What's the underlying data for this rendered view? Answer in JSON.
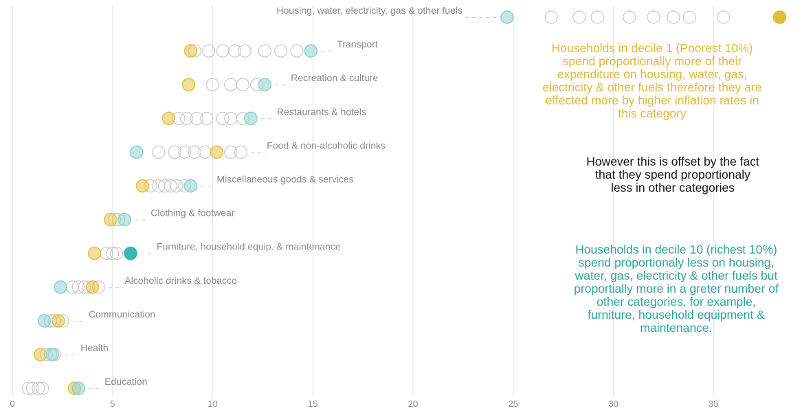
{
  "colors": {
    "decile1": "#e6c24a",
    "decile10": "#8fd3cf",
    "highlight1": "#e0b830",
    "highlight10": "#2fb4ab",
    "other": "#c8c8c8",
    "grid": "#e3e3e3",
    "connector": "#cccccc",
    "label": "#888888",
    "annot_decile1": "#e0b93a",
    "annot_body": "#111111",
    "annot_decile10": "#2aa39b"
  },
  "annotations": [
    {
      "text": "Households in decile 1 (Poorest 10%) spend proportionally more of their expenditure on housing, water, gas, electricity & other fuels therefore they are effected more by higher inflation rates in this category",
      "color_key": "annot_decile1"
    },
    {
      "text": "However this is offset by the fact that they spend proportionaly less in other categories",
      "color_key": "annot_body"
    },
    {
      "text": "Households in decile 10 (richest 10%) spend proportionaly less on housing, water, gas, electricity & other fuels but proportially more in a greter number of other categories, for example, furniture, household equipment & maintenance.",
      "color_key": "annot_decile10"
    }
  ],
  "chart_data": {
    "type": "scatter",
    "title": "",
    "xlabel": "",
    "ylabel": "",
    "xlim": [
      0,
      39
    ],
    "xticks": [
      0,
      5,
      10,
      15,
      20,
      25,
      30,
      35
    ],
    "grid": "vertical",
    "categories": [
      {
        "name": "Housing, water, electricity, gas & other fuels",
        "decile1": 38.3,
        "decile10": 24.7,
        "others": [
          26.9,
          28.3,
          29.2,
          30.8,
          32.0,
          33.0,
          33.8,
          35.5
        ],
        "highlight": "decile1"
      },
      {
        "name": "Transport",
        "decile1": 8.9,
        "decile10": 14.9,
        "others": [
          9.1,
          9.8,
          10.5,
          11.1,
          11.6,
          12.6,
          13.4,
          14.2
        ],
        "highlight": null
      },
      {
        "name": "Recreation & culture",
        "decile1": 8.8,
        "decile10": 12.6,
        "others": [
          10.0,
          10.9,
          11.5,
          12.2
        ],
        "highlight": null
      },
      {
        "name": "Restaurants & hotels",
        "decile1": 7.8,
        "decile10": 11.9,
        "others": [
          8.3,
          8.7,
          9.2,
          9.7,
          10.5,
          10.9,
          11.5
        ],
        "highlight": null
      },
      {
        "name": "Food & non-alcoholic drinks",
        "decile1": 10.2,
        "decile10": 6.2,
        "others": [
          7.3,
          8.1,
          8.6,
          9.1,
          9.6,
          10.9,
          11.4
        ],
        "highlight": null
      },
      {
        "name": "Miscellaneous goods & services",
        "decile1": 6.5,
        "decile10": 8.9,
        "others": [
          6.9,
          7.3,
          7.6,
          7.9,
          8.2,
          8.6
        ],
        "highlight": null
      },
      {
        "name": "Clothing & footwear",
        "decile1": 4.9,
        "decile10": 5.6,
        "others": [
          5.1,
          5.3
        ],
        "highlight": null
      },
      {
        "name": "Furniture, household equip. & maintenance",
        "decile1": 4.1,
        "decile10": 5.9,
        "others": [
          4.7,
          5.0,
          5.2
        ],
        "highlight": "decile10"
      },
      {
        "name": "Alcoholic drinks & tobacco",
        "decile1": 4.0,
        "decile10": 2.4,
        "others": [
          3.0,
          3.3,
          3.6,
          3.8,
          4.3
        ],
        "highlight": null
      },
      {
        "name": "Communication",
        "decile1": 2.3,
        "decile10": 1.6,
        "others": [
          1.9,
          2.1,
          2.5
        ],
        "highlight": null
      },
      {
        "name": "Health",
        "decile1": 1.4,
        "decile10": 2.0,
        "others": [
          1.7,
          1.9,
          2.1
        ],
        "highlight": null
      },
      {
        "name": "Education",
        "decile1": 3.1,
        "decile10": 3.3,
        "others": [
          0.8,
          1.0,
          1.3,
          1.5
        ],
        "highlight": null
      }
    ]
  }
}
